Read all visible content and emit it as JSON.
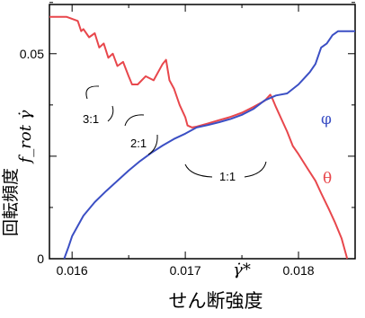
{
  "chart_data": {
    "type": "line",
    "title": "",
    "xlabel": "γ̇*",
    "xlabel_caption": "せん断強度",
    "ylabel": "f_rot γ̇",
    "ylabel_caption": "回転頻度",
    "xlim": [
      0.0158,
      0.0185
    ],
    "ylim": [
      0,
      0.062
    ],
    "x_ticks": [
      "0.016",
      "0.017",
      "0.018"
    ],
    "x_tick_values": [
      0.016,
      0.017,
      0.018
    ],
    "y_ticks": [
      "0",
      "0.05"
    ],
    "y_tick_values": [
      0,
      0.05
    ],
    "grid": false,
    "series": [
      {
        "name": "θ",
        "color": "#e8474c",
        "x": [
          0.0158,
          0.01595,
          0.01605,
          0.01608,
          0.0161,
          0.01615,
          0.0162,
          0.01624,
          0.01628,
          0.01632,
          0.01636,
          0.0164,
          0.01645,
          0.0165,
          0.01653,
          0.01658,
          0.01665,
          0.01672,
          0.0168,
          0.01683,
          0.01686,
          0.0169,
          0.01695,
          0.017,
          0.01702,
          0.01706,
          0.0171,
          0.01715,
          0.0172,
          0.0173,
          0.0174,
          0.0175,
          0.0176,
          0.0177,
          0.01775,
          0.01777,
          0.0178,
          0.0179,
          0.01795,
          0.018,
          0.01808,
          0.01815,
          0.0182,
          0.01827,
          0.01832,
          0.01838,
          0.01843
        ],
        "values": [
          0.059,
          0.059,
          0.058,
          0.0555,
          0.056,
          0.054,
          0.055,
          0.0515,
          0.0525,
          0.049,
          0.05,
          0.047,
          0.048,
          0.0445,
          0.0425,
          0.0425,
          0.0445,
          0.0435,
          0.0475,
          0.0485,
          0.0435,
          0.0415,
          0.0375,
          0.0345,
          0.0325,
          0.032,
          0.0322,
          0.0326,
          0.033,
          0.0338,
          0.0346,
          0.0356,
          0.037,
          0.0385,
          0.04,
          0.039,
          0.037,
          0.031,
          0.0275,
          0.0255,
          0.022,
          0.019,
          0.016,
          0.012,
          0.009,
          0.005,
          0.0
        ]
      },
      {
        "name": "φ",
        "color": "#3b4fc4",
        "x": [
          0.01593,
          0.01597,
          0.016,
          0.01605,
          0.0161,
          0.0162,
          0.0163,
          0.0164,
          0.0165,
          0.0166,
          0.0167,
          0.0168,
          0.0169,
          0.017,
          0.0171,
          0.0172,
          0.0173,
          0.0174,
          0.0175,
          0.0176,
          0.0177,
          0.0178,
          0.0179,
          0.018,
          0.01805,
          0.0181,
          0.01815,
          0.0182,
          0.01825,
          0.0183,
          0.01835,
          0.0184,
          0.0185
        ],
        "values": [
          0.0,
          0.003,
          0.0055,
          0.008,
          0.0105,
          0.0138,
          0.0165,
          0.019,
          0.0215,
          0.0238,
          0.0258,
          0.0276,
          0.0292,
          0.0305,
          0.032,
          0.0326,
          0.0333,
          0.0341,
          0.0351,
          0.0365,
          0.0386,
          0.0398,
          0.0403,
          0.0425,
          0.044,
          0.0455,
          0.0475,
          0.0515,
          0.0525,
          0.0545,
          0.0555,
          0.0555,
          0.0555
        ]
      }
    ],
    "annotations": [
      "3:1",
      "2:1",
      "1:1"
    ]
  }
}
